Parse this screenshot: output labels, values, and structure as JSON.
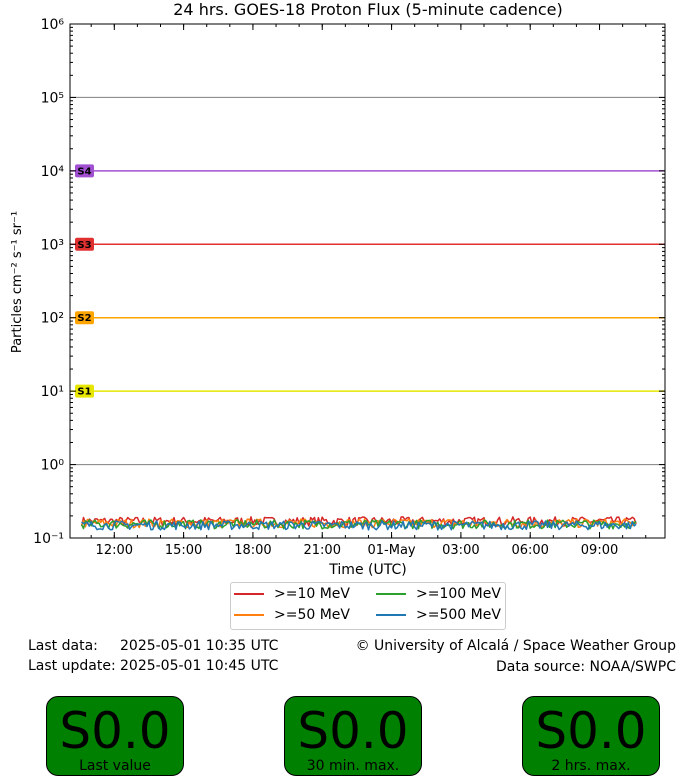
{
  "chart_data": {
    "type": "line",
    "title": "24 hrs. GOES-18 Proton Flux (5-minute cadence)",
    "xlabel": "Time (UTC)",
    "ylabel": "Particles cm⁻² s⁻¹ sr⁻¹",
    "yscale": "log",
    "ylim": [
      0.1,
      1000000
    ],
    "ytick_labels": [
      "10⁻¹",
      "10⁰",
      "10¹",
      "10²",
      "10³",
      "10⁴",
      "10⁵",
      "10⁶"
    ],
    "xlim": [
      "2025-04-30 10:05",
      "2025-05-01 11:50"
    ],
    "xtick_labels": [
      "12:00",
      "15:00",
      "18:00",
      "21:00",
      "01-May",
      "03:00",
      "06:00",
      "09:00"
    ],
    "xtick_values": [
      "2025-04-30 12:00",
      "2025-04-30 15:00",
      "2025-04-30 18:00",
      "2025-04-30 21:00",
      "2025-05-01 00:00",
      "2025-05-01 03:00",
      "2025-05-01 06:00",
      "2025-05-01 09:00"
    ],
    "data_range": [
      "2025-04-30 10:35",
      "2025-05-01 10:35"
    ],
    "grid": false,
    "legend_position": "bottom-center",
    "thresholds": [
      {
        "label": "S1",
        "value": 10,
        "color": "#e6e600"
      },
      {
        "label": "S2",
        "value": 100,
        "color": "#ffa500"
      },
      {
        "label": "S3",
        "value": 1000,
        "color": "#e03030"
      },
      {
        "label": "S4",
        "value": 10000,
        "color": "#a050d0"
      }
    ],
    "reference_lines": [
      1,
      100000
    ],
    "series": [
      {
        "name": ">=10 MeV",
        "color": "#d62728",
        "level": 0.17
      },
      {
        "name": ">=50 MeV",
        "color": "#ff7f0e",
        "level": 0.16
      },
      {
        "name": ">=100 MeV",
        "color": "#2ca02c",
        "level": 0.155
      },
      {
        "name": ">=500 MeV",
        "color": "#1f77b4",
        "level": 0.15
      }
    ]
  },
  "info": {
    "last_data_label": "Last data:",
    "last_data_value": "2025-05-01 10:35 UTC",
    "last_update_label": "Last update:",
    "last_update_value": "2025-05-01 10:45 UTC",
    "copyright": "© University of Alcalá / Space Weather Group",
    "data_source": "Data source: NOAA/SWPC"
  },
  "status_boxes": [
    {
      "value": "S0.0",
      "label": "Last value",
      "color": "#008000"
    },
    {
      "value": "S0.0",
      "label": "30 min. max.",
      "color": "#008000"
    },
    {
      "value": "S0.0",
      "label": "2 hrs. max.",
      "color": "#008000"
    }
  ]
}
